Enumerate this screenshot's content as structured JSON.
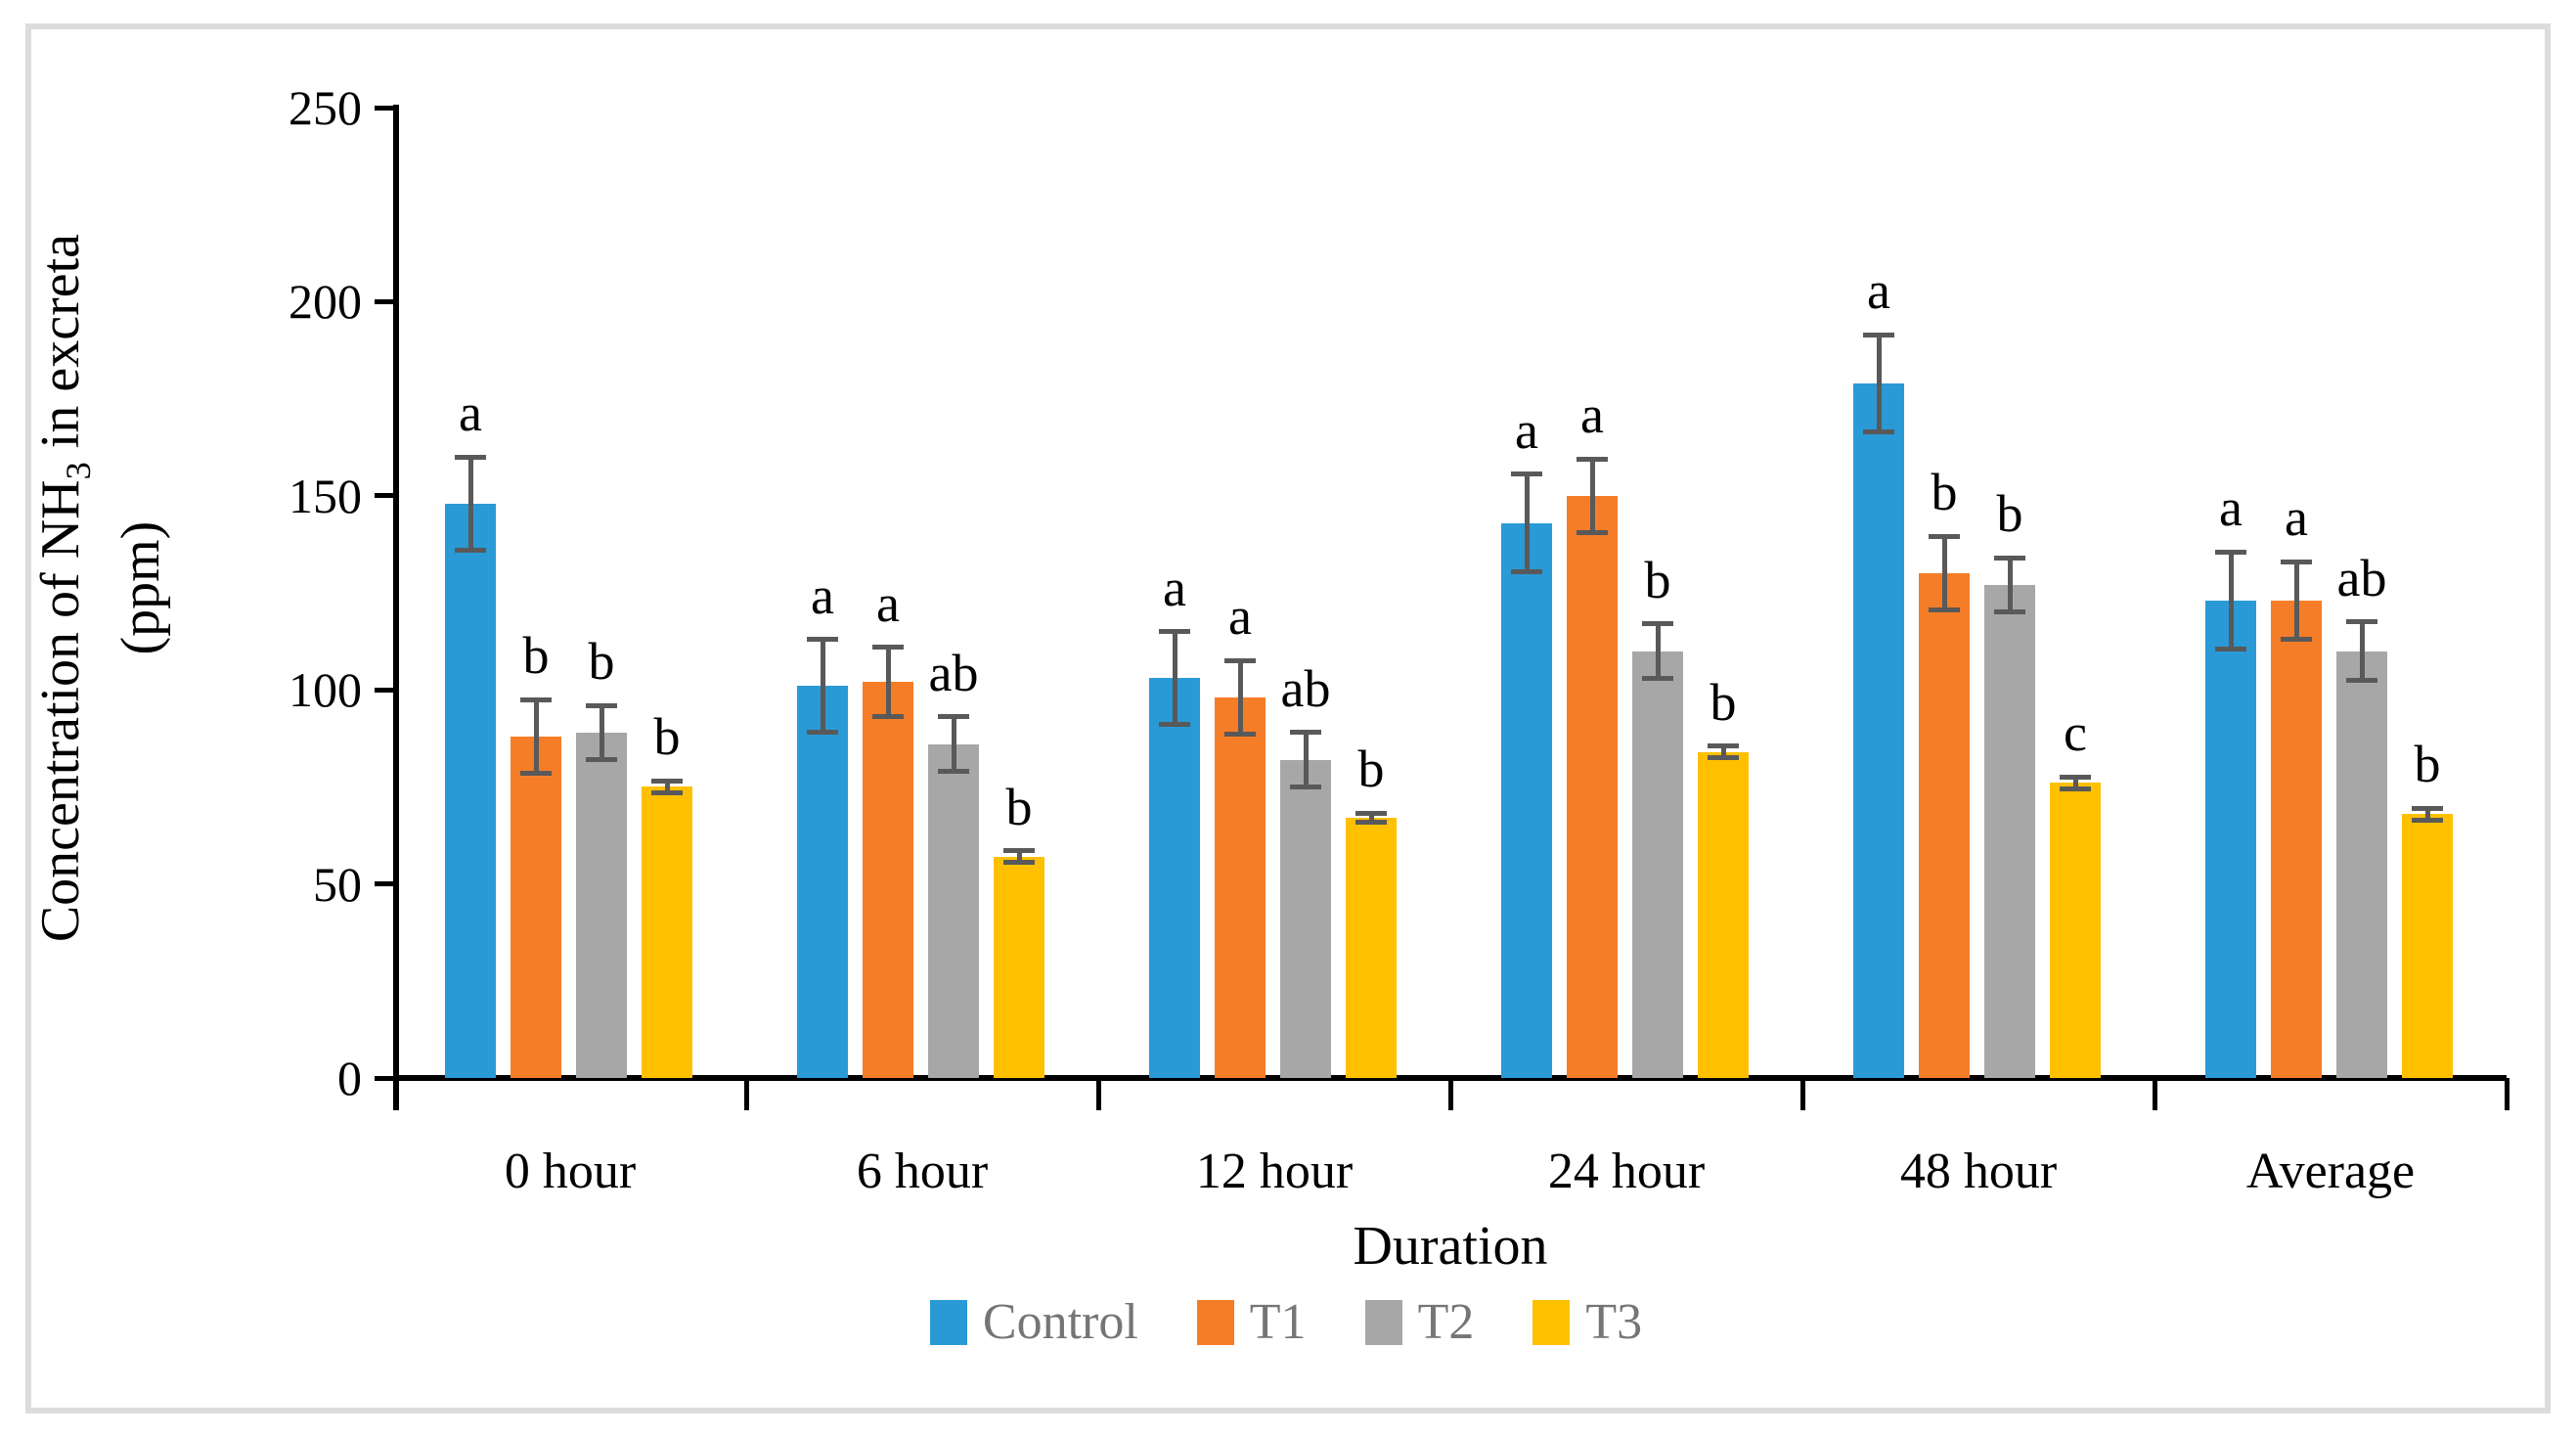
{
  "figure": {
    "y_axis_title_pre": "Concentration of NH",
    "y_axis_title_sub": "3",
    "y_axis_title_post": " in excreta",
    "y_axis_title_line2": "(ppm)",
    "x_axis_title": "Duration"
  },
  "chart_data": {
    "type": "bar",
    "title": "",
    "xlabel": "Duration",
    "ylabel": "Concentration of NH3 in excreta (ppm)",
    "ylim": [
      0,
      250
    ],
    "yticks": [
      0,
      50,
      100,
      150,
      200,
      250
    ],
    "grid": false,
    "legend_position": "bottom",
    "error_bar_color": "#595959",
    "axis_color": "#000000",
    "categories": [
      "0 hour",
      "6 hour",
      "12 hour",
      "24 hour",
      "48 hour",
      "Average"
    ],
    "series": [
      {
        "name": "Control",
        "color": "#2A9AD6",
        "values": [
          148,
          101,
          103,
          143,
          179,
          123
        ],
        "errors": [
          12,
          12,
          12,
          12.5,
          12.5,
          12.5
        ],
        "letters": [
          "a",
          "a",
          "a",
          "a",
          "a",
          "a"
        ]
      },
      {
        "name": "T1",
        "color": "#F67D28",
        "values": [
          88,
          102,
          98,
          150,
          130,
          123
        ],
        "errors": [
          9.5,
          9,
          9.5,
          9.5,
          9.5,
          10
        ],
        "letters": [
          "b",
          "a",
          "a",
          "a",
          "b",
          "a"
        ]
      },
      {
        "name": "T2",
        "color": "#A7A7A7",
        "values": [
          89,
          86,
          82,
          110,
          127,
          110
        ],
        "errors": [
          7,
          7,
          7,
          7,
          7,
          7.5
        ],
        "letters": [
          "b",
          "ab",
          "ab",
          "b",
          "b",
          "ab"
        ]
      },
      {
        "name": "T3",
        "color": "#FFC000",
        "values": [
          75,
          57,
          67,
          84,
          76,
          68
        ],
        "errors": [
          1.5,
          1.5,
          1.2,
          1.5,
          1.5,
          1.5
        ],
        "letters": [
          "b",
          "b",
          "b",
          "b",
          "c",
          "b"
        ]
      }
    ]
  }
}
